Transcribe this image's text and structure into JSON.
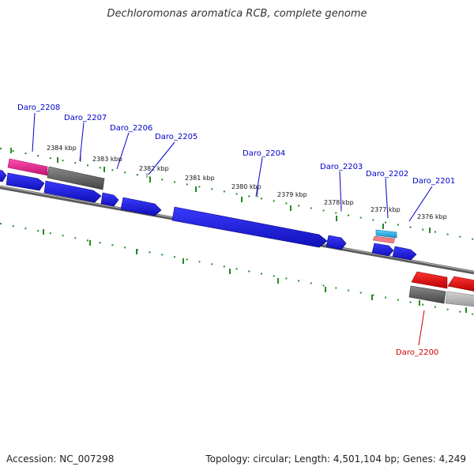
{
  "title": "Dechloromonas aromatica RCB, complete genome",
  "footer": {
    "accession_label": "Accession: NC_007298",
    "stats": "Topology: circular; Length: 4,501,104 bp; Genes: 4,249"
  },
  "colors": {
    "backbone": "#888888",
    "tick": "#228b22",
    "gene_label": "#0000cc",
    "gene_label_alt": "#cc0000",
    "forward_gene": "#1a1aee",
    "reverse_gene": "#ee1111",
    "highlight_gene": "#ee2f9a",
    "pseudo_gene": "#6b6b6b",
    "rna_gene": "#33bbee"
  },
  "scale_labels": [
    "2384 kbp",
    "2383 kbp",
    "2382 kbp",
    "2381 kbp",
    "2380 kbp",
    "2379 kbp",
    "2378 kbp",
    "2377 kbp",
    "2376 kbp"
  ],
  "gene_labels": [
    "Daro_2208",
    "Daro_2207",
    "Daro_2206",
    "Daro_2205",
    "Daro_2204",
    "Daro_2203",
    "Daro_2202",
    "Daro_2201",
    "Daro_2200"
  ]
}
